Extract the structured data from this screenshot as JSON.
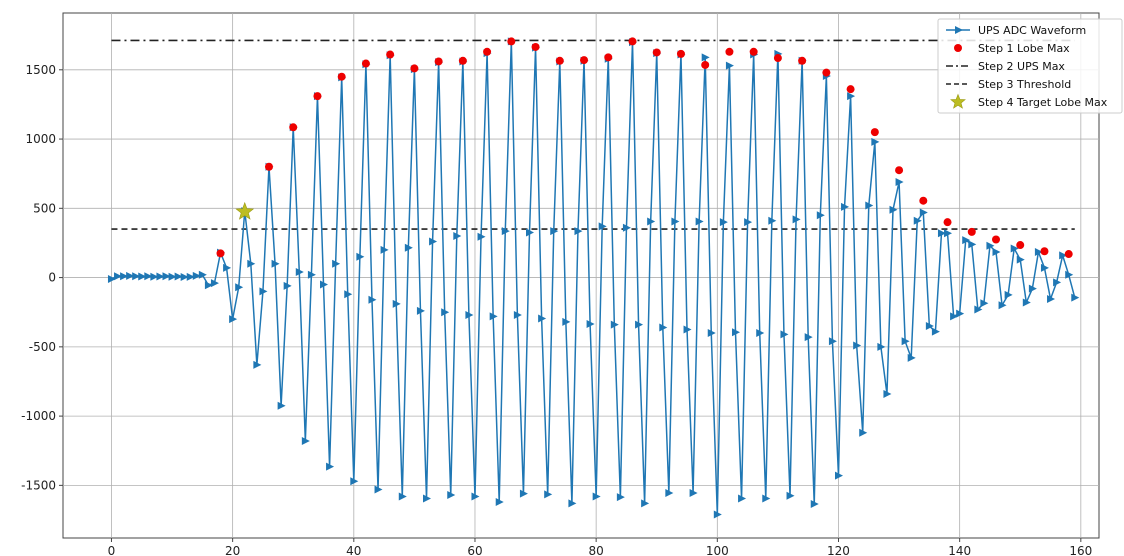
{
  "chart_data": {
    "type": "line",
    "title": "",
    "xlabel": "",
    "ylabel": "",
    "xlim": [
      -8,
      163
    ],
    "ylim": [
      -1880,
      1910
    ],
    "xticks": [
      0,
      20,
      40,
      60,
      80,
      100,
      120,
      140,
      160
    ],
    "yticks": [
      -1500,
      -1000,
      -500,
      0,
      500,
      1000,
      1500
    ],
    "grid": true,
    "legend_position": "top-right",
    "colors": {
      "waveform": "#1f77b4",
      "lobe_max": "#ee0000",
      "reference": "#222222",
      "target": "#bcbd22"
    },
    "series": [
      {
        "name": "UPS ADC Waveform",
        "style": "line-with-right-triangle-markers",
        "x": [
          0,
          1,
          2,
          3,
          4,
          5,
          6,
          7,
          8,
          9,
          10,
          11,
          12,
          13,
          14,
          15,
          16,
          17,
          18,
          19,
          20,
          21,
          22,
          23,
          24,
          25,
          26,
          27,
          28,
          29,
          30,
          31,
          32,
          33,
          34,
          35,
          36,
          37,
          38,
          39,
          40,
          41,
          42,
          43,
          44,
          45,
          46,
          47,
          48,
          49,
          50,
          51,
          52,
          53,
          54,
          55,
          56,
          57,
          58,
          59,
          60,
          61,
          62,
          63,
          64,
          65,
          66,
          67,
          68,
          69,
          70,
          71,
          72,
          73,
          74,
          75,
          76,
          77,
          78,
          79,
          80,
          81,
          82,
          83,
          84,
          85,
          86,
          87,
          88,
          89,
          90,
          91,
          92,
          93,
          94,
          95,
          96,
          97,
          98,
          99,
          100,
          101,
          102,
          103,
          104,
          105,
          106,
          107,
          108,
          109,
          110,
          111,
          112,
          113,
          114,
          115,
          116,
          117,
          118,
          119,
          120,
          121,
          122,
          123,
          124,
          125,
          126,
          127,
          128,
          129,
          130,
          131,
          132,
          133,
          134,
          135,
          136,
          137,
          138,
          139,
          140,
          141,
          142,
          143,
          144,
          145,
          146,
          147,
          148,
          149,
          150,
          151,
          152,
          153,
          154,
          155,
          156,
          157,
          158,
          159
        ],
        "y": [
          -10,
          10,
          10,
          12,
          10,
          8,
          10,
          6,
          8,
          10,
          6,
          8,
          4,
          5,
          12,
          20,
          -55,
          -40,
          180,
          70,
          -300,
          -70,
          480,
          100,
          -630,
          -100,
          800,
          100,
          -925,
          -60,
          1085,
          40,
          -1180,
          20,
          1310,
          -50,
          -1365,
          100,
          1445,
          -120,
          -1470,
          150,
          1540,
          -160,
          -1530,
          200,
          1605,
          -190,
          -1580,
          215,
          1505,
          -240,
          -1595,
          260,
          1555,
          -250,
          -1570,
          300,
          1560,
          -270,
          -1580,
          295,
          1620,
          -280,
          -1620,
          335,
          1705,
          -270,
          -1560,
          325,
          1660,
          -295,
          -1565,
          335,
          1560,
          -320,
          -1630,
          335,
          1565,
          -335,
          -1580,
          370,
          1580,
          -340,
          -1585,
          360,
          1700,
          -340,
          -1630,
          405,
          1620,
          -360,
          -1555,
          405,
          1610,
          -375,
          -1555,
          405,
          1590,
          -400,
          -1710,
          400,
          1530,
          -395,
          -1595,
          400,
          1610,
          -400,
          -1595,
          410,
          1615,
          -410,
          -1575,
          420,
          1565,
          -430,
          -1635,
          450,
          1455,
          -460,
          -1430,
          510,
          1310,
          -490,
          -1120,
          520,
          980,
          -500,
          -840,
          490,
          690,
          -460,
          -580,
          410,
          470,
          -350,
          -390,
          320,
          320,
          -280,
          -260,
          270,
          240,
          -230,
          -185,
          230,
          185,
          -200,
          -125,
          210,
          130,
          -180,
          -80,
          185,
          70,
          -155,
          -35,
          160,
          20,
          -145
        ]
      },
      {
        "name": "Step 1 Lobe Max",
        "style": "red-dots",
        "x": [
          18,
          22,
          26,
          30,
          34,
          38,
          42,
          46,
          50,
          54,
          58,
          62,
          66,
          70,
          74,
          78,
          82,
          86,
          90,
          94,
          98,
          102,
          106,
          110,
          114,
          118,
          122,
          126,
          130,
          134,
          138,
          142,
          146,
          150,
          154,
          158
        ],
        "y": [
          175,
          475,
          800,
          1085,
          1310,
          1450,
          1545,
          1610,
          1510,
          1560,
          1565,
          1630,
          1705,
          1665,
          1565,
          1570,
          1590,
          1705,
          1625,
          1615,
          1535,
          1630,
          1630,
          1585,
          1565,
          1480,
          1360,
          1050,
          775,
          555,
          400,
          330,
          275,
          235,
          190,
          170
        ]
      },
      {
        "name": "Step 2 UPS Max",
        "style": "dash-dot-line",
        "x": [
          0,
          159
        ],
        "y": [
          1712,
          1712
        ]
      },
      {
        "name": "Step 3 Threshold",
        "style": "dashed-line",
        "x": [
          0,
          159
        ],
        "y": [
          350,
          350
        ]
      },
      {
        "name": "Step 4 Target Lobe Max",
        "style": "yellow-star",
        "x": [
          22
        ],
        "y": [
          475
        ]
      }
    ]
  }
}
